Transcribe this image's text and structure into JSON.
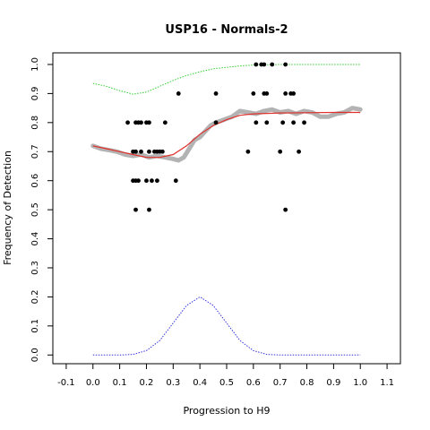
{
  "chart_data": {
    "type": "scatter",
    "title": "USP16 - Normals-2",
    "xlabel": "Progression to H9",
    "ylabel": "Frequency of Detection",
    "xlim": [
      -0.15,
      1.15
    ],
    "ylim": [
      -0.03,
      1.04
    ],
    "x_ticks": [
      "-0.1",
      "0.0",
      "0.1",
      "0.2",
      "0.3",
      "0.4",
      "0.5",
      "0.6",
      "0.7",
      "0.8",
      "0.9",
      "1.0",
      "1.1"
    ],
    "x_tick_values": [
      -0.1,
      0.0,
      0.1,
      0.2,
      0.3,
      0.4,
      0.5,
      0.6,
      0.7,
      0.8,
      0.9,
      1.0,
      1.1
    ],
    "y_ticks": [
      "0.0",
      "0.1",
      "0.2",
      "0.3",
      "0.4",
      "0.5",
      "0.6",
      "0.7",
      "0.8",
      "0.9",
      "1.0"
    ],
    "y_tick_values": [
      0.0,
      0.1,
      0.2,
      0.3,
      0.4,
      0.5,
      0.6,
      0.7,
      0.8,
      0.9,
      1.0
    ],
    "grid": false,
    "colors": {
      "points": "#000000",
      "smoothed": "#b3b3b3",
      "fit": "#e0302b",
      "upper": "#33cc33",
      "density": "#3333dd"
    },
    "points": [
      {
        "x": 0.13,
        "y": 0.8
      },
      {
        "x": 0.16,
        "y": 0.8
      },
      {
        "x": 0.17,
        "y": 0.8
      },
      {
        "x": 0.18,
        "y": 0.8
      },
      {
        "x": 0.2,
        "y": 0.8
      },
      {
        "x": 0.21,
        "y": 0.8
      },
      {
        "x": 0.27,
        "y": 0.8
      },
      {
        "x": 0.15,
        "y": 0.7
      },
      {
        "x": 0.16,
        "y": 0.7
      },
      {
        "x": 0.18,
        "y": 0.7
      },
      {
        "x": 0.21,
        "y": 0.7
      },
      {
        "x": 0.23,
        "y": 0.7
      },
      {
        "x": 0.24,
        "y": 0.7
      },
      {
        "x": 0.25,
        "y": 0.7
      },
      {
        "x": 0.26,
        "y": 0.7
      },
      {
        "x": 0.15,
        "y": 0.6
      },
      {
        "x": 0.16,
        "y": 0.6
      },
      {
        "x": 0.17,
        "y": 0.6
      },
      {
        "x": 0.2,
        "y": 0.6
      },
      {
        "x": 0.22,
        "y": 0.6
      },
      {
        "x": 0.24,
        "y": 0.6
      },
      {
        "x": 0.31,
        "y": 0.6
      },
      {
        "x": 0.16,
        "y": 0.5
      },
      {
        "x": 0.21,
        "y": 0.5
      },
      {
        "x": 0.32,
        "y": 0.9
      },
      {
        "x": 0.46,
        "y": 0.9
      },
      {
        "x": 0.46,
        "y": 0.8
      },
      {
        "x": 0.6,
        "y": 0.9
      },
      {
        "x": 0.64,
        "y": 0.9
      },
      {
        "x": 0.65,
        "y": 0.9
      },
      {
        "x": 0.72,
        "y": 0.9
      },
      {
        "x": 0.74,
        "y": 0.9
      },
      {
        "x": 0.75,
        "y": 0.9
      },
      {
        "x": 0.61,
        "y": 1.0
      },
      {
        "x": 0.63,
        "y": 1.0
      },
      {
        "x": 0.64,
        "y": 1.0
      },
      {
        "x": 0.67,
        "y": 1.0
      },
      {
        "x": 0.72,
        "y": 1.0
      },
      {
        "x": 0.61,
        "y": 0.8
      },
      {
        "x": 0.65,
        "y": 0.8
      },
      {
        "x": 0.71,
        "y": 0.8
      },
      {
        "x": 0.75,
        "y": 0.8
      },
      {
        "x": 0.79,
        "y": 0.8
      },
      {
        "x": 0.58,
        "y": 0.7
      },
      {
        "x": 0.7,
        "y": 0.7
      },
      {
        "x": 0.77,
        "y": 0.7
      },
      {
        "x": 0.72,
        "y": 0.5
      }
    ],
    "smoothed_series": [
      {
        "x": 0.0,
        "y": 0.72
      },
      {
        "x": 0.03,
        "y": 0.71
      },
      {
        "x": 0.06,
        "y": 0.705
      },
      {
        "x": 0.09,
        "y": 0.7
      },
      {
        "x": 0.12,
        "y": 0.69
      },
      {
        "x": 0.15,
        "y": 0.685
      },
      {
        "x": 0.18,
        "y": 0.69
      },
      {
        "x": 0.21,
        "y": 0.68
      },
      {
        "x": 0.24,
        "y": 0.685
      },
      {
        "x": 0.27,
        "y": 0.68
      },
      {
        "x": 0.3,
        "y": 0.675
      },
      {
        "x": 0.32,
        "y": 0.67
      },
      {
        "x": 0.34,
        "y": 0.68
      },
      {
        "x": 0.36,
        "y": 0.71
      },
      {
        "x": 0.38,
        "y": 0.74
      },
      {
        "x": 0.4,
        "y": 0.75
      },
      {
        "x": 0.42,
        "y": 0.77
      },
      {
        "x": 0.44,
        "y": 0.79
      },
      {
        "x": 0.46,
        "y": 0.8
      },
      {
        "x": 0.49,
        "y": 0.81
      },
      {
        "x": 0.52,
        "y": 0.82
      },
      {
        "x": 0.55,
        "y": 0.84
      },
      {
        "x": 0.58,
        "y": 0.835
      },
      {
        "x": 0.61,
        "y": 0.83
      },
      {
        "x": 0.64,
        "y": 0.84
      },
      {
        "x": 0.67,
        "y": 0.845
      },
      {
        "x": 0.7,
        "y": 0.835
      },
      {
        "x": 0.73,
        "y": 0.84
      },
      {
        "x": 0.76,
        "y": 0.83
      },
      {
        "x": 0.79,
        "y": 0.84
      },
      {
        "x": 0.82,
        "y": 0.835
      },
      {
        "x": 0.85,
        "y": 0.82
      },
      {
        "x": 0.88,
        "y": 0.82
      },
      {
        "x": 0.91,
        "y": 0.83
      },
      {
        "x": 0.94,
        "y": 0.835
      },
      {
        "x": 0.97,
        "y": 0.85
      },
      {
        "x": 1.0,
        "y": 0.845
      }
    ],
    "fit_series": [
      {
        "x": 0.0,
        "y": 0.72
      },
      {
        "x": 0.05,
        "y": 0.71
      },
      {
        "x": 0.1,
        "y": 0.7
      },
      {
        "x": 0.15,
        "y": 0.69
      },
      {
        "x": 0.2,
        "y": 0.68
      },
      {
        "x": 0.25,
        "y": 0.68
      },
      {
        "x": 0.3,
        "y": 0.69
      },
      {
        "x": 0.35,
        "y": 0.72
      },
      {
        "x": 0.4,
        "y": 0.76
      },
      {
        "x": 0.45,
        "y": 0.79
      },
      {
        "x": 0.5,
        "y": 0.81
      },
      {
        "x": 0.55,
        "y": 0.825
      },
      {
        "x": 0.6,
        "y": 0.83
      },
      {
        "x": 0.7,
        "y": 0.833
      },
      {
        "x": 0.8,
        "y": 0.834
      },
      {
        "x": 0.9,
        "y": 0.835
      },
      {
        "x": 1.0,
        "y": 0.835
      }
    ],
    "upper_series": [
      {
        "x": 0.0,
        "y": 0.935
      },
      {
        "x": 0.05,
        "y": 0.925
      },
      {
        "x": 0.1,
        "y": 0.91
      },
      {
        "x": 0.15,
        "y": 0.898
      },
      {
        "x": 0.2,
        "y": 0.905
      },
      {
        "x": 0.25,
        "y": 0.925
      },
      {
        "x": 0.3,
        "y": 0.945
      },
      {
        "x": 0.35,
        "y": 0.962
      },
      {
        "x": 0.4,
        "y": 0.975
      },
      {
        "x": 0.45,
        "y": 0.985
      },
      {
        "x": 0.5,
        "y": 0.99
      },
      {
        "x": 0.55,
        "y": 0.995
      },
      {
        "x": 0.6,
        "y": 0.998
      },
      {
        "x": 0.7,
        "y": 1.0
      },
      {
        "x": 0.8,
        "y": 1.0
      },
      {
        "x": 0.9,
        "y": 1.0
      },
      {
        "x": 1.0,
        "y": 1.0
      }
    ],
    "density_series": [
      {
        "x": 0.0,
        "y": 0.0
      },
      {
        "x": 0.1,
        "y": 0.0
      },
      {
        "x": 0.15,
        "y": 0.002
      },
      {
        "x": 0.2,
        "y": 0.015
      },
      {
        "x": 0.25,
        "y": 0.05
      },
      {
        "x": 0.3,
        "y": 0.11
      },
      {
        "x": 0.35,
        "y": 0.17
      },
      {
        "x": 0.4,
        "y": 0.2
      },
      {
        "x": 0.45,
        "y": 0.17
      },
      {
        "x": 0.5,
        "y": 0.11
      },
      {
        "x": 0.55,
        "y": 0.05
      },
      {
        "x": 0.6,
        "y": 0.015
      },
      {
        "x": 0.65,
        "y": 0.002
      },
      {
        "x": 0.7,
        "y": 0.0
      },
      {
        "x": 0.8,
        "y": 0.0
      },
      {
        "x": 0.9,
        "y": 0.0
      },
      {
        "x": 1.0,
        "y": 0.0
      }
    ]
  }
}
